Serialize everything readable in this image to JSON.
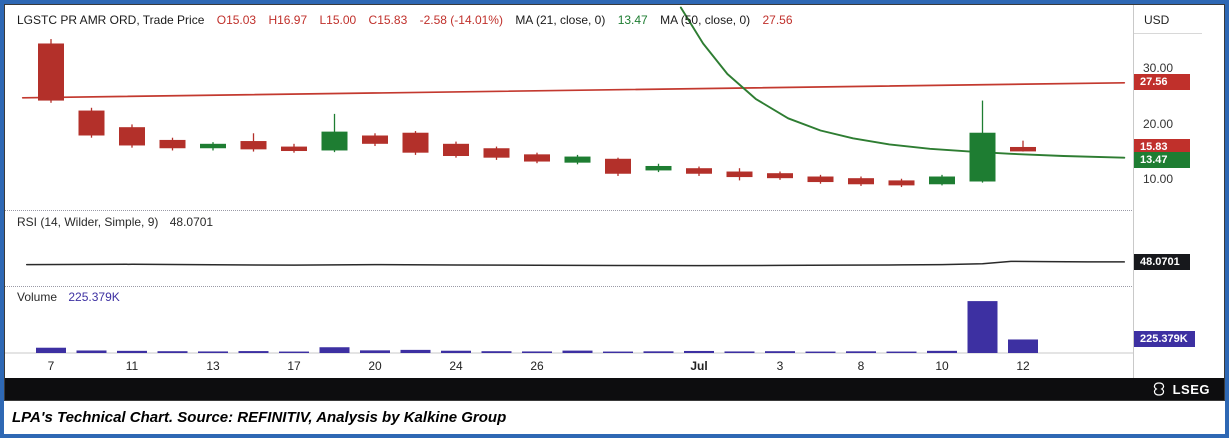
{
  "legend": {
    "title": "LGSTC PR AMR ORD, Trade Price",
    "open": "O15.03",
    "high": "H16.97",
    "low": "L15.00",
    "close": "C15.83",
    "change": "-2.58 (-14.01%)",
    "ma21_label": "MA (21, close, 0)",
    "ma21_value": "13.47",
    "ma50_label": "MA (50, close, 0)",
    "ma50_value": "27.56"
  },
  "rsi_legend": {
    "label": "RSI (14, Wilder, Simple, 9)",
    "value": "48.0701"
  },
  "volume_legend": {
    "label": "Volume",
    "value": "225.379K"
  },
  "axis": {
    "currency": "USD"
  },
  "footer": {
    "brand": "LSEG"
  },
  "caption": {
    "text": "LPA's Technical Chart. Source: REFINITIV, Analysis by Kalkine Group"
  },
  "chart_data": {
    "type": "candlestick",
    "title": "LGSTC PR AMR ORD, Trade Price",
    "last_bar": {
      "open": 15.03,
      "high": 16.97,
      "low": 15.0,
      "close": 15.83,
      "change": -2.58,
      "change_pct": -14.01
    },
    "price_axis": {
      "min": 5,
      "max": 40,
      "unit": "USD",
      "ticks": [
        {
          "label": "30.00",
          "value": 30
        },
        {
          "label": "20.00",
          "value": 20
        },
        {
          "label": "10.00",
          "value": 10
        }
      ]
    },
    "rsi_axis": {
      "min": 20,
      "max": 100
    },
    "volume_axis": {
      "max": 1000,
      "unit": "K"
    },
    "x_ticks": [
      {
        "i": 0,
        "label": "7"
      },
      {
        "i": 2,
        "label": "11"
      },
      {
        "i": 4,
        "label": "13"
      },
      {
        "i": 6,
        "label": "17"
      },
      {
        "i": 8,
        "label": "20"
      },
      {
        "i": 10,
        "label": "24"
      },
      {
        "i": 12,
        "label": "26"
      },
      {
        "i": 16,
        "label": "Jul",
        "bold": true
      },
      {
        "i": 18,
        "label": "3"
      },
      {
        "i": 20,
        "label": "8"
      },
      {
        "i": 22,
        "label": "10"
      },
      {
        "i": 24,
        "label": "12"
      }
    ],
    "candles": [
      [
        34.5,
        35.3,
        23.8,
        24.2,
        "d"
      ],
      [
        22.4,
        22.9,
        17.5,
        17.9,
        "d"
      ],
      [
        19.4,
        19.9,
        15.7,
        16.1,
        "d"
      ],
      [
        17.1,
        17.5,
        15.2,
        15.6,
        "d"
      ],
      [
        15.6,
        16.7,
        15.2,
        16.4,
        "u"
      ],
      [
        16.9,
        18.3,
        15.0,
        15.4,
        "d"
      ],
      [
        15.9,
        16.4,
        14.8,
        15.1,
        "d"
      ],
      [
        15.2,
        21.8,
        14.9,
        18.6,
        "u"
      ],
      [
        17.9,
        18.3,
        16.0,
        16.4,
        "d"
      ],
      [
        18.4,
        18.7,
        14.4,
        14.8,
        "d"
      ],
      [
        16.4,
        16.8,
        13.9,
        14.2,
        "d"
      ],
      [
        15.6,
        15.9,
        13.5,
        13.9,
        "d"
      ],
      [
        14.5,
        14.8,
        12.9,
        13.2,
        "d"
      ],
      [
        13.0,
        14.4,
        12.7,
        14.1,
        "u"
      ],
      [
        13.7,
        13.9,
        10.6,
        11.0,
        "d"
      ],
      [
        11.6,
        12.8,
        11.3,
        12.4,
        "u"
      ],
      [
        12.0,
        12.3,
        10.6,
        11.0,
        "d"
      ],
      [
        11.4,
        12.0,
        9.8,
        10.4,
        "d"
      ],
      [
        11.1,
        11.4,
        9.9,
        10.2,
        "d"
      ],
      [
        10.5,
        10.8,
        9.2,
        9.5,
        "d"
      ],
      [
        10.2,
        10.5,
        8.8,
        9.1,
        "d"
      ],
      [
        9.8,
        10.1,
        8.6,
        8.9,
        "d"
      ],
      [
        9.1,
        10.8,
        8.9,
        10.5,
        "u"
      ],
      [
        9.6,
        24.2,
        9.4,
        18.4,
        "u"
      ],
      [
        15.03,
        16.97,
        15.0,
        15.83,
        "d"
      ]
    ],
    "ma21": {
      "name": "MA (21, close, 0)",
      "last": 13.47,
      "points": [
        [
          15.55,
          41
        ],
        [
          16.1,
          34.5
        ],
        [
          16.7,
          29
        ],
        [
          17.4,
          24.5
        ],
        [
          18.2,
          21
        ],
        [
          19,
          18.8
        ],
        [
          19.8,
          17.4
        ],
        [
          20.7,
          16.3
        ],
        [
          21.7,
          15.5
        ],
        [
          22.7,
          15.0
        ],
        [
          23.7,
          14.6
        ],
        [
          25,
          14.2
        ],
        [
          26.5,
          13.9
        ]
      ]
    },
    "ma50": {
      "name": "MA (50, close, 0)",
      "last": 27.56,
      "points": [
        [
          -0.7,
          24.7
        ],
        [
          26.5,
          27.4
        ]
      ]
    },
    "rsi": {
      "name": "RSI (14, Wilder, Simple, 9)",
      "last": 48.0701,
      "points": [
        [
          -0.6,
          44.6
        ],
        [
          2,
          44.9
        ],
        [
          4,
          44.3
        ],
        [
          6,
          43.9
        ],
        [
          8,
          44.5
        ],
        [
          10,
          44.0
        ],
        [
          12,
          43.7
        ],
        [
          14,
          43.3
        ],
        [
          16,
          43.2
        ],
        [
          18,
          43.5
        ],
        [
          19.5,
          43.9
        ],
        [
          21,
          44.2
        ],
        [
          22,
          44.6
        ],
        [
          23,
          45.6
        ],
        [
          23.7,
          48.8
        ],
        [
          24.6,
          48.5
        ],
        [
          25.6,
          48.2
        ],
        [
          26.5,
          48.07
        ]
      ]
    },
    "volume": {
      "last": 225.379,
      "last_display": "225.379K",
      "unit": "K",
      "values": [
        88,
        42,
        36,
        30,
        26,
        32,
        24,
        96,
        44,
        52,
        38,
        30,
        26,
        40,
        24,
        28,
        34,
        26,
        30,
        24,
        28,
        24,
        36,
        865,
        225.379
      ]
    },
    "badges": [
      {
        "name": "ma50-badge",
        "label": "27.56",
        "value": 27.56,
        "pane": "price",
        "bg": "#c0302b"
      },
      {
        "name": "last-price-badge",
        "label": "15.83",
        "value": 15.83,
        "pane": "price",
        "bg": "#c0302b"
      },
      {
        "name": "ma21-badge",
        "label": "13.47",
        "value": 13.47,
        "pane": "price",
        "bg": "#1e7d32"
      },
      {
        "name": "rsi-badge",
        "label": "48.0701",
        "value": 48.0701,
        "pane": "rsi",
        "bg": "#17181c"
      },
      {
        "name": "volume-badge",
        "label": "225.379K",
        "value": 225.379,
        "pane": "vol",
        "bg": "#3d30a2"
      }
    ],
    "colors": {
      "up": "#1e7d32",
      "down": "#b3302a",
      "ma21": "#2e7d32",
      "ma50": "#c3392f",
      "rsi": "#2a2a2a",
      "volume": "#3d30a2",
      "frame_border": "#2e68b4"
    },
    "legend_position": "top-left",
    "grid": false
  }
}
